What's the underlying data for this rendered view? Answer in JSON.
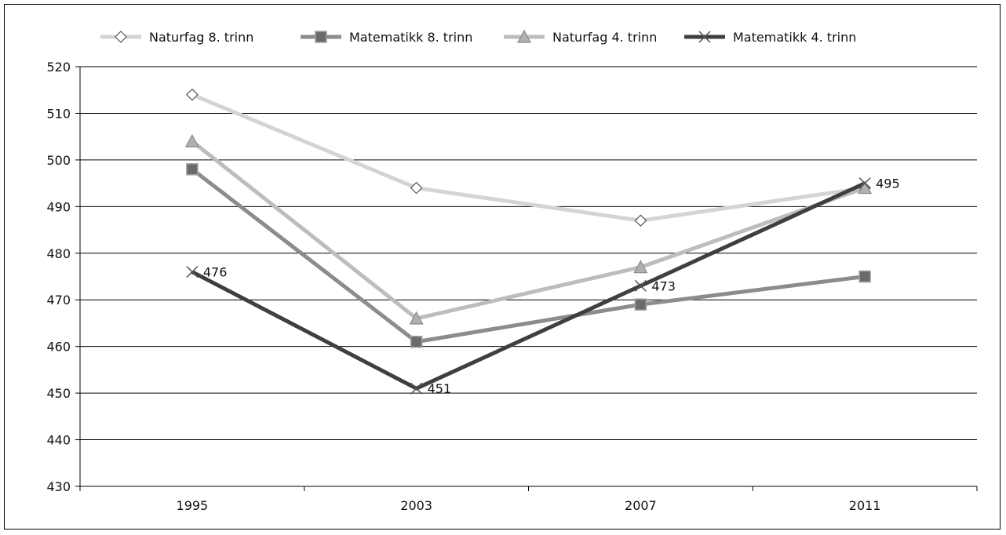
{
  "chart_data": {
    "type": "line",
    "title": "",
    "xlabel": "",
    "ylabel": "",
    "categories": [
      "1995",
      "2003",
      "2007",
      "2011"
    ],
    "ylim": [
      430,
      520
    ],
    "yticks": [
      430,
      440,
      450,
      460,
      470,
      480,
      490,
      500,
      510,
      520
    ],
    "grid": true,
    "legend_position": "top",
    "series": [
      {
        "name": "Naturfag 8. trinn",
        "values": [
          514,
          494,
          487,
          494
        ],
        "color": "#d4d4d4",
        "marker": "diamond",
        "data_labels": [
          "",
          "",
          "",
          ""
        ]
      },
      {
        "name": "Matematikk 8. trinn",
        "values": [
          498,
          461,
          469,
          475
        ],
        "color": "#8c8c8c",
        "marker": "square",
        "data_labels": [
          "",
          "",
          "",
          ""
        ]
      },
      {
        "name": "Naturfag 4. trinn",
        "values": [
          504,
          466,
          477,
          494
        ],
        "color": "#bdbdbd",
        "marker": "triangle",
        "data_labels": [
          "",
          "",
          "",
          ""
        ]
      },
      {
        "name": "Matematikk 4. trinn",
        "values": [
          476,
          451,
          473,
          495
        ],
        "color": "#3f3f3f",
        "marker": "x",
        "data_labels": [
          "476",
          "451",
          "473",
          "495"
        ]
      }
    ]
  }
}
